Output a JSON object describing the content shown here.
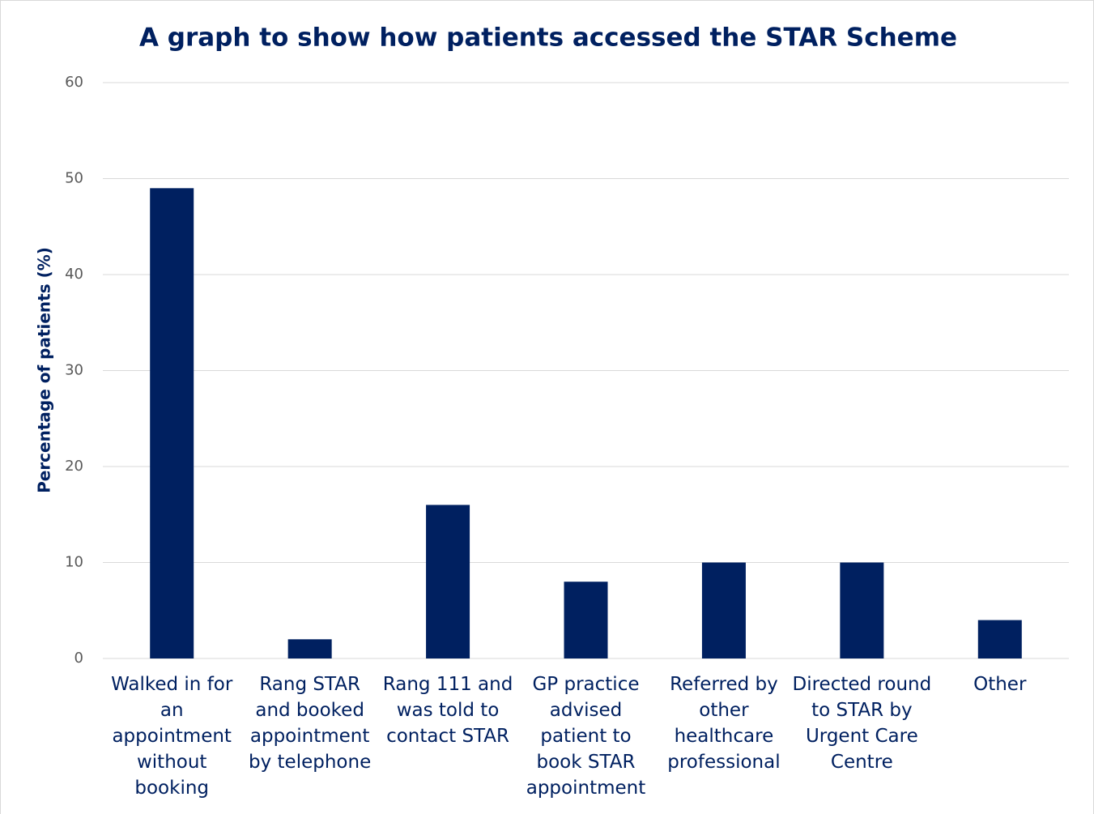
{
  "chart_data": {
    "type": "bar",
    "title": "A graph to show how patients accessed the STAR Scheme",
    "y_label": "Percentage of patients (%)",
    "categories": [
      "Walked in for an appointment without booking",
      "Rang STAR and booked appointment by telephone",
      "Rang 111 and was told to contact STAR",
      "GP practice advised patient to book STAR appointment",
      "Referred by other healthcare professional",
      "Directed round to STAR by Urgent Care Centre",
      "Other"
    ],
    "values": [
      49,
      2,
      16,
      8,
      10,
      10,
      4
    ],
    "color": "#002060",
    "ylim": [
      0,
      60
    ],
    "yticks": [
      0,
      10,
      20,
      30,
      40,
      50,
      60
    ],
    "grid": true
  }
}
